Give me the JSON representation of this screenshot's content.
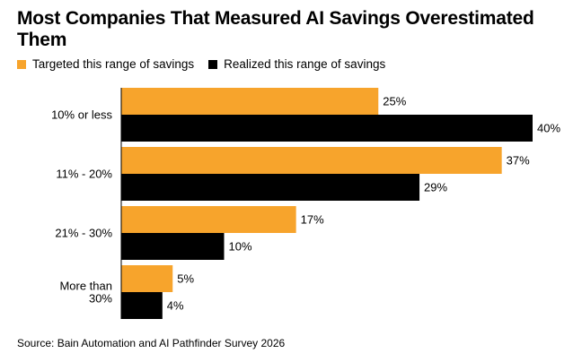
{
  "title": "Most Companies That Measured AI Savings Overestimated Them",
  "source": "Source: Bain Automation and AI Pathfinder Survey 2026",
  "colors": {
    "targeted": "#f7a42c",
    "realized": "#000000"
  },
  "chart_data": {
    "type": "bar",
    "orientation": "horizontal",
    "title": "Most Companies That Measured AI Savings Overestimated Them",
    "categories": [
      [
        "10% or less"
      ],
      [
        "11% - 20%"
      ],
      [
        "21% - 30%"
      ],
      [
        "More than",
        "30%"
      ]
    ],
    "series": [
      {
        "name": "Targeted this range of savings",
        "values": [
          25,
          37,
          17,
          5
        ],
        "labels": [
          "25%",
          "37%",
          "17%",
          "5%"
        ]
      },
      {
        "name": "Realized this range of savings",
        "values": [
          40,
          29,
          10,
          4
        ],
        "labels": [
          "40%",
          "29%",
          "10%",
          "4%"
        ]
      }
    ],
    "legend_position": "top-left",
    "grid": false
  }
}
